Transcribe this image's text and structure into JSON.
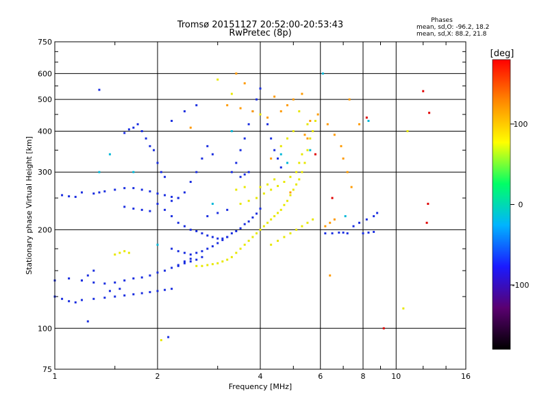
{
  "chart_data": {
    "type": "scatter",
    "title": "Tromsø 20151127 20:52:00-20:53:43",
    "subtitle": "RwPretec (8p)",
    "xlabel": "Frequency [MHz]",
    "ylabel": "Stationary phase Virtual Height [km]",
    "x_scale": "log",
    "y_scale": "log",
    "xlim": [
      1,
      16
    ],
    "ylim": [
      75,
      750
    ],
    "x_ticks": [
      {
        "v": 1,
        "label": "1"
      },
      {
        "v": 2,
        "label": "2"
      },
      {
        "v": 4,
        "label": "4"
      },
      {
        "v": 6,
        "label": "6"
      },
      {
        "v": 8,
        "label": "8"
      },
      {
        "v": 10,
        "label": "10"
      },
      {
        "v": 16,
        "label": "16"
      }
    ],
    "x_grid": [
      2,
      4,
      6,
      8,
      10
    ],
    "x_minor_ticks": [
      1.5,
      3,
      5,
      7,
      9,
      12,
      14
    ],
    "y_ticks": [
      {
        "v": 75,
        "label": "75"
      },
      {
        "v": 100,
        "label": "100"
      },
      {
        "v": 200,
        "label": "200"
      },
      {
        "v": 300,
        "label": "300"
      },
      {
        "v": 400,
        "label": "400"
      },
      {
        "v": 500,
        "label": "500"
      },
      {
        "v": 600,
        "label": "600"
      },
      {
        "v": 750,
        "label": "750"
      }
    ],
    "y_grid": [
      100,
      200,
      300,
      400,
      500,
      600
    ],
    "y_minor_ticks": [
      125,
      150,
      175,
      250,
      350,
      450,
      550,
      650,
      700
    ],
    "grid": true,
    "stats": {
      "title": "Phases",
      "o_mode": "mean, sd,O: -96.2, 18.2",
      "x_mode": "mean, sd,X:  88.2, 21.8"
    },
    "colorbar": {
      "label": "[deg]",
      "range": [
        -180,
        180
      ],
      "ticks": [
        {
          "v": 100,
          "label": "100"
        },
        {
          "v": 0,
          "label": "0"
        },
        {
          "v": -100,
          "label": "-100"
        }
      ],
      "colors": [
        "#000000",
        "#5a0070",
        "#1a1aff",
        "#00b4ff",
        "#00ff66",
        "#ffff00",
        "#ff8800",
        "#ff0000"
      ]
    },
    "series": [
      {
        "points": [
          [
            1.0,
            125
          ],
          [
            1.05,
            123
          ],
          [
            1.1,
            121
          ],
          [
            1.15,
            120
          ],
          [
            1.2,
            122
          ],
          [
            1.3,
            123
          ],
          [
            1.4,
            124
          ],
          [
            1.5,
            125
          ],
          [
            1.6,
            126
          ],
          [
            1.7,
            127
          ],
          [
            1.8,
            128
          ],
          [
            1.9,
            129
          ],
          [
            2.0,
            130
          ],
          [
            2.1,
            131
          ],
          [
            2.2,
            132
          ],
          [
            1.0,
            140
          ],
          [
            1.1,
            142
          ],
          [
            1.2,
            140
          ],
          [
            1.3,
            138
          ],
          [
            1.4,
            137
          ],
          [
            1.5,
            138
          ],
          [
            1.6,
            140
          ],
          [
            1.7,
            142
          ],
          [
            1.8,
            143
          ],
          [
            1.9,
            145
          ],
          [
            2.0,
            148
          ],
          [
            2.1,
            150
          ],
          [
            2.2,
            153
          ],
          [
            2.3,
            156
          ],
          [
            2.4,
            160
          ],
          [
            2.5,
            163
          ],
          [
            1.05,
            255
          ],
          [
            1.1,
            253
          ],
          [
            1.15,
            252
          ],
          [
            1.2,
            260
          ],
          [
            1.3,
            258
          ],
          [
            1.35,
            260
          ],
          [
            1.4,
            262
          ],
          [
            1.5,
            265
          ],
          [
            1.6,
            268
          ],
          [
            1.7,
            268
          ],
          [
            1.8,
            265
          ],
          [
            1.9,
            262
          ],
          [
            2.0,
            258
          ],
          [
            2.1,
            255
          ],
          [
            2.2,
            252
          ],
          [
            2.3,
            250
          ],
          [
            1.6,
            395
          ],
          [
            1.65,
            405
          ],
          [
            1.7,
            410
          ],
          [
            1.75,
            420
          ],
          [
            1.8,
            400
          ],
          [
            1.85,
            380
          ],
          [
            1.9,
            360
          ],
          [
            1.95,
            350
          ],
          [
            2.0,
            320
          ],
          [
            2.05,
            300
          ],
          [
            2.1,
            290
          ],
          [
            2.0,
            240
          ],
          [
            2.1,
            230
          ],
          [
            2.2,
            220
          ],
          [
            2.3,
            210
          ],
          [
            2.4,
            205
          ],
          [
            2.5,
            200
          ],
          [
            2.6,
            198
          ],
          [
            2.7,
            195
          ],
          [
            2.8,
            192
          ],
          [
            2.9,
            190
          ],
          [
            3.0,
            188
          ],
          [
            3.1,
            188
          ],
          [
            3.2,
            190
          ],
          [
            2.2,
            175
          ],
          [
            2.3,
            172
          ],
          [
            2.4,
            170
          ],
          [
            2.5,
            168
          ],
          [
            2.6,
            170
          ],
          [
            2.7,
            172
          ],
          [
            2.8,
            175
          ],
          [
            2.9,
            178
          ],
          [
            3.0,
            182
          ],
          [
            3.1,
            186
          ],
          [
            3.2,
            190
          ],
          [
            3.3,
            195
          ],
          [
            3.4,
            198
          ],
          [
            3.5,
            202
          ],
          [
            3.6,
            208
          ],
          [
            3.7,
            212
          ],
          [
            3.8,
            218
          ],
          [
            3.9,
            224
          ],
          [
            4.0,
            232
          ],
          [
            2.3,
            155
          ],
          [
            2.4,
            158
          ],
          [
            2.5,
            160
          ],
          [
            2.6,
            162
          ],
          [
            2.7,
            165
          ],
          [
            2.2,
            245
          ],
          [
            2.3,
            250
          ],
          [
            2.4,
            260
          ],
          [
            2.5,
            280
          ],
          [
            2.6,
            300
          ],
          [
            2.7,
            330
          ],
          [
            2.8,
            360
          ],
          [
            2.9,
            340
          ],
          [
            3.3,
            300
          ],
          [
            3.4,
            320
          ],
          [
            3.5,
            350
          ],
          [
            3.6,
            380
          ],
          [
            3.7,
            420
          ],
          [
            3.8,
            460
          ],
          [
            3.9,
            500
          ],
          [
            4.0,
            540
          ],
          [
            4.2,
            420
          ],
          [
            4.3,
            380
          ],
          [
            4.4,
            350
          ],
          [
            4.5,
            330
          ],
          [
            4.6,
            310
          ],
          [
            2.2,
            430
          ],
          [
            2.4,
            460
          ],
          [
            2.6,
            480
          ],
          [
            1.6,
            235
          ],
          [
            1.7,
            232
          ],
          [
            1.8,
            230
          ],
          [
            1.9,
            228
          ],
          [
            1.25,
            105
          ],
          [
            2.15,
            94
          ],
          [
            1.45,
            130
          ],
          [
            1.55,
            132
          ],
          [
            6.2,
            195
          ],
          [
            6.5,
            195
          ],
          [
            6.8,
            196
          ],
          [
            7.0,
            196
          ],
          [
            7.2,
            195
          ],
          [
            8.0,
            195
          ],
          [
            8.3,
            196
          ],
          [
            8.6,
            197
          ],
          [
            7.5,
            205
          ],
          [
            7.8,
            210
          ],
          [
            8.2,
            215
          ],
          [
            8.6,
            220
          ],
          [
            8.8,
            225
          ],
          [
            2.8,
            220
          ],
          [
            3.0,
            225
          ],
          [
            3.2,
            230
          ],
          [
            1.35,
            535
          ],
          [
            1.2,
            140
          ],
          [
            1.25,
            145
          ],
          [
            1.3,
            150
          ],
          [
            3.5,
            290
          ],
          [
            3.6,
            295
          ],
          [
            3.7,
            300
          ]
        ]
      },
      {
        "points": [
          [
            2.6,
            155
          ],
          [
            2.7,
            155
          ],
          [
            2.8,
            156
          ],
          [
            2.9,
            157
          ],
          [
            3.0,
            158
          ],
          [
            3.1,
            160
          ],
          [
            3.2,
            162
          ],
          [
            3.3,
            165
          ],
          [
            3.4,
            170
          ],
          [
            3.5,
            175
          ],
          [
            3.6,
            180
          ],
          [
            3.7,
            185
          ],
          [
            3.8,
            190
          ],
          [
            3.9,
            195
          ],
          [
            4.0,
            200
          ],
          [
            4.1,
            205
          ],
          [
            4.2,
            210
          ],
          [
            4.3,
            215
          ],
          [
            4.4,
            220
          ],
          [
            4.5,
            225
          ],
          [
            4.6,
            230
          ],
          [
            4.7,
            238
          ],
          [
            4.8,
            245
          ],
          [
            4.9,
            255
          ],
          [
            5.0,
            265
          ],
          [
            5.1,
            275
          ],
          [
            5.2,
            285
          ],
          [
            5.3,
            300
          ],
          [
            5.4,
            320
          ],
          [
            5.5,
            350
          ],
          [
            5.6,
            380
          ],
          [
            5.7,
            400
          ],
          [
            3.5,
            240
          ],
          [
            3.7,
            245
          ],
          [
            3.9,
            250
          ],
          [
            4.1,
            258
          ],
          [
            4.3,
            265
          ],
          [
            4.5,
            272
          ],
          [
            4.7,
            280
          ],
          [
            4.9,
            290
          ],
          [
            5.1,
            300
          ],
          [
            5.2,
            320
          ],
          [
            5.3,
            340
          ],
          [
            4.0,
            270
          ],
          [
            4.2,
            275
          ],
          [
            4.4,
            285
          ],
          [
            3.6,
            270
          ],
          [
            3.4,
            265
          ],
          [
            4.3,
            180
          ],
          [
            4.5,
            185
          ],
          [
            4.7,
            190
          ],
          [
            4.9,
            195
          ],
          [
            5.1,
            200
          ],
          [
            5.3,
            205
          ],
          [
            5.5,
            210
          ],
          [
            5.7,
            215
          ],
          [
            1.5,
            168
          ],
          [
            1.55,
            170
          ],
          [
            1.6,
            172
          ],
          [
            1.65,
            170
          ],
          [
            3.0,
            575
          ],
          [
            3.3,
            520
          ],
          [
            4.0,
            450
          ],
          [
            5.2,
            460
          ],
          [
            5.5,
            420
          ],
          [
            5.8,
            430
          ],
          [
            4.6,
            360
          ],
          [
            4.8,
            380
          ],
          [
            5.0,
            400
          ],
          [
            10.8,
            400
          ],
          [
            10.5,
            115
          ],
          [
            2.05,
            92
          ]
        ]
      },
      {
        "points": [
          [
            3.2,
            480
          ],
          [
            3.5,
            470
          ],
          [
            3.8,
            460
          ],
          [
            4.2,
            440
          ],
          [
            4.8,
            480
          ],
          [
            5.0,
            500
          ],
          [
            5.3,
            520
          ],
          [
            5.6,
            430
          ],
          [
            5.9,
            450
          ],
          [
            6.3,
            420
          ],
          [
            6.6,
            390
          ],
          [
            6.9,
            360
          ],
          [
            7.0,
            330
          ],
          [
            7.2,
            300
          ],
          [
            7.4,
            270
          ],
          [
            3.6,
            560
          ],
          [
            3.4,
            600
          ],
          [
            4.4,
            510
          ],
          [
            4.6,
            460
          ],
          [
            5.4,
            390
          ],
          [
            6.4,
            145
          ],
          [
            7.3,
            500
          ],
          [
            7.8,
            420
          ],
          [
            2.5,
            410
          ],
          [
            6.2,
            205
          ],
          [
            6.4,
            210
          ],
          [
            6.6,
            215
          ],
          [
            4.3,
            330
          ],
          [
            4.9,
            260
          ],
          [
            5.5,
            380
          ]
        ]
      },
      {
        "points": [
          [
            1.35,
            300
          ],
          [
            1.45,
            340
          ],
          [
            1.7,
            300
          ],
          [
            2.0,
            180
          ],
          [
            2.9,
            240
          ],
          [
            3.3,
            400
          ],
          [
            4.6,
            340
          ],
          [
            5.6,
            350
          ],
          [
            4.8,
            320
          ],
          [
            6.1,
            600
          ],
          [
            8.3,
            430
          ],
          [
            7.1,
            220
          ]
        ]
      },
      {
        "points": [
          [
            5.8,
            340
          ],
          [
            6.5,
            250
          ],
          [
            12.3,
            210
          ],
          [
            12.4,
            240
          ],
          [
            12.5,
            455
          ],
          [
            12.0,
            530
          ],
          [
            8.2,
            440
          ],
          [
            9.2,
            100
          ]
        ]
      }
    ],
    "series_colors": [
      "#1a2ee0",
      "#e8e800",
      "#ff9a00",
      "#00b8d8",
      "#e00000"
    ]
  }
}
